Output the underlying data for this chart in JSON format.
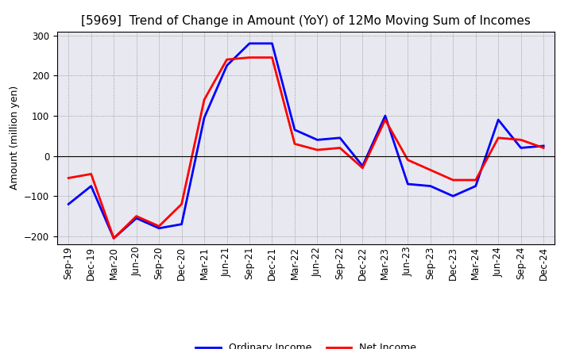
{
  "title": "[5969]  Trend of Change in Amount (YoY) of 12Mo Moving Sum of Incomes",
  "ylabel": "Amount (million yen)",
  "xlabels": [
    "Sep-19",
    "Dec-19",
    "Mar-20",
    "Jun-20",
    "Sep-20",
    "Dec-20",
    "Mar-21",
    "Jun-21",
    "Sep-21",
    "Dec-21",
    "Mar-22",
    "Jun-22",
    "Sep-22",
    "Dec-22",
    "Mar-23",
    "Jun-23",
    "Sep-23",
    "Dec-23",
    "Mar-24",
    "Jun-24",
    "Sep-24",
    "Dec-24"
  ],
  "ordinary_income": [
    -120,
    -75,
    -205,
    -155,
    -180,
    -170,
    95,
    225,
    280,
    280,
    65,
    40,
    45,
    -25,
    100,
    -70,
    -75,
    -100,
    -75,
    90,
    20,
    25
  ],
  "net_income": [
    -55,
    -45,
    -205,
    -150,
    -175,
    -120,
    140,
    240,
    245,
    245,
    30,
    15,
    20,
    -30,
    90,
    -10,
    -35,
    -60,
    -60,
    45,
    40,
    20
  ],
  "ordinary_color": "#0000ff",
  "net_color": "#ff0000",
  "ylim": [
    -220,
    310
  ],
  "yticks": [
    -200,
    -100,
    0,
    100,
    200,
    300
  ],
  "background_color": "#ffffff",
  "grid_color": "#aaaaaa",
  "linewidth": 2.0,
  "legend_ordinary": "Ordinary Income",
  "legend_net": "Net Income",
  "title_fontsize": 11,
  "ylabel_fontsize": 9,
  "tick_fontsize": 8.5
}
